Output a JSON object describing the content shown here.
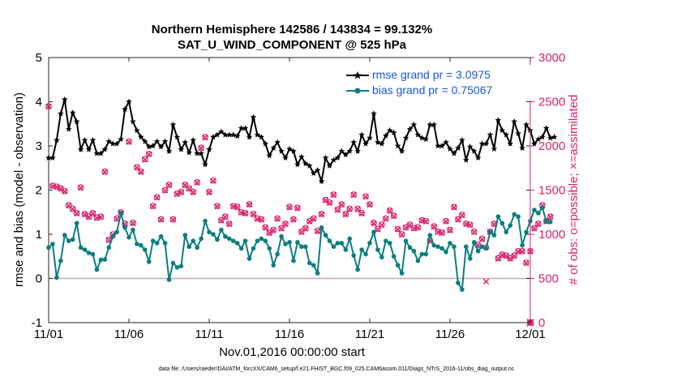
{
  "chart_data": {
    "type": "line",
    "title": "Northern Hemisphere 142586 / 143834 = 99.132%",
    "subtitle": "SAT_U_WIND_COMPONENT @ 525 hPa",
    "xlabel": "Nov.01,2016 00:00:00 start",
    "ylabel_left": "rmse and bias (model - observation)",
    "ylabel_right": "# of obs: o=possible; ×=assimilated",
    "xlim": [
      0,
      30
    ],
    "ylim_left": [
      -1,
      5
    ],
    "ylim_right": [
      0,
      3000
    ],
    "x_ticks": [
      0,
      5,
      10,
      15,
      20,
      25,
      30
    ],
    "x_tick_labels": [
      "11/01",
      "11/06",
      "11/11",
      "11/16",
      "11/21",
      "11/26",
      "12/01"
    ],
    "y_ticks_left": [
      "-1",
      "0",
      "1",
      "2",
      "3",
      "4",
      "5"
    ],
    "y_ticks_right": [
      "0",
      "500",
      "1000",
      "1500",
      "2000",
      "2500",
      "3000"
    ],
    "zero_line": 0,
    "legend_position": "top-right",
    "series": [
      {
        "name": "rmse grand pr = 3.0975",
        "color": "#000000",
        "marker": "star",
        "x_start": 0,
        "x_step": 0.25,
        "values": [
          2.73,
          2.73,
          3.13,
          3.73,
          4.05,
          3.38,
          3.75,
          3.55,
          2.92,
          3.13,
          2.92,
          3.13,
          2.83,
          2.83,
          2.92,
          3.1,
          3.05,
          3.05,
          3.15,
          3.83,
          4.0,
          3.55,
          3.35,
          3.2,
          3.1,
          2.98,
          3.0,
          3.1,
          2.98,
          3.1,
          2.88,
          3.48,
          3.2,
          2.92,
          3.08,
          2.85,
          3.13,
          2.83,
          2.83,
          2.58,
          2.92,
          3.2,
          3.25,
          3.32,
          3.25,
          3.25,
          3.25,
          3.22,
          3.4,
          3.4,
          3.2,
          3.65,
          3.25,
          3.2,
          3.05,
          2.78,
          2.95,
          3.08,
          2.88,
          2.73,
          2.93,
          2.88,
          2.58,
          2.75,
          2.6,
          2.55,
          2.38,
          2.45,
          2.2,
          2.73,
          2.55,
          2.68,
          2.73,
          2.88,
          2.8,
          2.88,
          3.08,
          2.88,
          3.25,
          3.05,
          3.18,
          3.73,
          3.08,
          3.05,
          3.23,
          3.35,
          3.3,
          3.0,
          2.88,
          3.18,
          3.38,
          3.48,
          3.25,
          3.18,
          3.15,
          3.48,
          3.48,
          3.0,
          3.0,
          3.08,
          2.93,
          2.83,
          2.95,
          3.13,
          2.68,
          2.98,
          2.88,
          2.73,
          3.05,
          3.05,
          3.25,
          2.93,
          3.58,
          3.35,
          3.25,
          3.05,
          3.55,
          3.28,
          2.95,
          3.48,
          3.35,
          3.05,
          3.15,
          3.2,
          3.4,
          3.18,
          3.2
        ]
      },
      {
        "name": "bias grand pr = 0.75067",
        "color": "#0a7e7e",
        "marker": "circle",
        "x_start": 0,
        "x_step": 0.25,
        "values": [
          0.7,
          0.78,
          0.02,
          0.4,
          0.98,
          0.85,
          0.88,
          1.25,
          0.7,
          0.65,
          0.58,
          0.55,
          0.2,
          0.42,
          0.43,
          0.7,
          0.95,
          1.05,
          1.48,
          1.15,
          0.93,
          1.1,
          0.78,
          0.75,
          0.65,
          0.38,
          0.85,
          0.8,
          0.95,
          0.8,
          -0.03,
          0.35,
          0.25,
          0.28,
          0.98,
          0.72,
          0.85,
          0.7,
          0.9,
          1.3,
          1.05,
          1.0,
          0.88,
          1.1,
          0.95,
          0.9,
          0.85,
          0.8,
          0.68,
          0.85,
          0.45,
          0.68,
          0.85,
          0.9,
          0.85,
          0.68,
          0.3,
          0.55,
          0.95,
          0.78,
          0.82,
          0.4,
          0.82,
          0.72,
          0.72,
          0.35,
          0.3,
          0.12,
          1.15,
          0.98,
          0.85,
          0.72,
          0.8,
          0.8,
          0.65,
          0.9,
          0.52,
          0.2,
          0.65,
          0.55,
          0.8,
          1.05,
          0.65,
          0.48,
          0.85,
          0.8,
          0.5,
          0.3,
          0.12,
          0.85,
          0.7,
          0.62,
          0.4,
          0.55,
          0.55,
          0.98,
          0.75,
          0.72,
          0.68,
          0.6,
          0.8,
          0.72,
          -0.1,
          -0.25,
          0.72,
          0.45,
          0.82,
          0.62,
          0.72,
          0.68,
          1.05,
          0.98,
          1.4,
          1.25,
          1.05,
          1.2,
          1.45,
          1.4,
          0.75,
          1.05,
          1.3,
          1.55,
          1.48,
          1.6,
          1.3,
          1.28
        ]
      },
      {
        "name": "# of obs possible",
        "axis": "right",
        "color": "#d6246e",
        "marker": "o",
        "x_start": 0,
        "x_step": 0.25,
        "values": [
          2450,
          1550,
          1540,
          1520,
          1490,
          1330,
          1290,
          1240,
          1530,
          1230,
          1200,
          1240,
          1190,
          1200,
          1710,
          940,
          1000,
          1180,
          1250,
          1120,
          2050,
          1130,
          1760,
          1710,
          1850,
          1910,
          1320,
          1420,
          1170,
          1500,
          1560,
          1170,
          1460,
          1480,
          1560,
          1520,
          1480,
          1590,
          1980,
          2100,
          1480,
          1610,
          1320,
          1160,
          1200,
          1120,
          1320,
          1310,
          1250,
          1240,
          1340,
          1230,
          1180,
          1170,
          1080,
          1020,
          1050,
          1180,
          1070,
          1120,
          1310,
          1170,
          1300,
          1030,
          1070,
          1150,
          1180,
          1040,
          1230,
          1390,
          1360,
          1450,
          1280,
          1340,
          1230,
          1290,
          1450,
          1290,
          1240,
          1430,
          1340,
          1130,
          1060,
          1110,
          1180,
          1270,
          1210,
          1060,
          1000,
          1080,
          1110,
          1070,
          1080,
          1160,
          1150,
          930,
          1090,
          1030,
          1020,
          1150,
          1050,
          1310,
          1170,
          1220,
          1120,
          1110,
          1030,
          880,
          950,
          850,
          1030,
          1120,
          730,
          770,
          760,
          730,
          760,
          810,
          810,
          680,
          810,
          1070,
          1120,
          1330,
          1150,
          1200
        ]
      },
      {
        "name": "# of obs assimilated",
        "axis": "right",
        "color": "#d6246e",
        "marker": "x",
        "x_start": 0,
        "x_step": 0.25,
        "values": [
          2445,
          1545,
          1535,
          1515,
          1485,
          1325,
          1285,
          1235,
          1525,
          1225,
          1195,
          1235,
          1185,
          1195,
          1705,
          935,
          995,
          1175,
          1245,
          1115,
          2045,
          1125,
          1755,
          1705,
          1845,
          1905,
          1315,
          1415,
          1165,
          1495,
          1555,
          1165,
          1455,
          1475,
          1555,
          1515,
          1475,
          1585,
          1975,
          2095,
          1475,
          1605,
          1315,
          1155,
          1195,
          1115,
          1315,
          1305,
          1245,
          1235,
          1335,
          1225,
          1175,
          1165,
          1075,
          1015,
          1045,
          1175,
          1065,
          1115,
          1305,
          1165,
          1295,
          1025,
          1065,
          1145,
          1175,
          1035,
          1225,
          1385,
          1355,
          1445,
          1275,
          1335,
          1225,
          1285,
          1445,
          1285,
          1235,
          1425,
          1335,
          1125,
          1055,
          1105,
          1175,
          1265,
          1205,
          1055,
          995,
          1075,
          1105,
          1065,
          1075,
          1155,
          1145,
          925,
          1085,
          1025,
          1015,
          1145,
          1045,
          1305,
          1165,
          1215,
          1115,
          1105,
          1025,
          875,
          945,
          465,
          1025,
          1115,
          725,
          765,
          755,
          725,
          755,
          805,
          805,
          675,
          805,
          1065,
          1115,
          1325,
          1145,
          1195
        ]
      }
    ],
    "extra_points_right": [
      {
        "x": 30,
        "y": 0,
        "marker": "x"
      }
    ]
  },
  "footnote": "data file: /Users/raeder/DAI/ATM_forcXX/CAM6_setup/f.e21.FHIST_BGC.f09_025.CAM6assim.011/Diags_NTrS_2016-11/obs_diag_output.nc"
}
